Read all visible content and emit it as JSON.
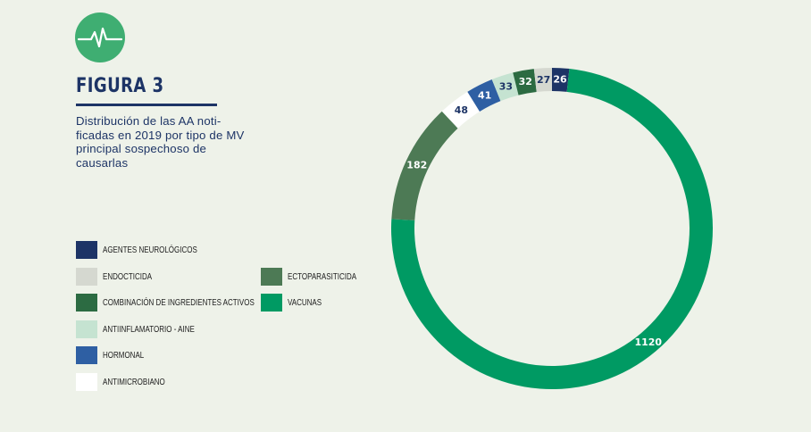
{
  "figure": {
    "title": "FIGURA 3",
    "description": "Distribución de las AA noti-ficadas en 2019 por tipo de MV principal sospechoso de causarlas",
    "logo_icon": "heartbeat-icon"
  },
  "chart_data": {
    "type": "pie",
    "variant": "donut",
    "title": "",
    "slices": [
      {
        "label": "Agentes neurológicos",
        "value": 26,
        "color": "#1d3466",
        "label_color": "#ffffff"
      },
      {
        "label": "Vacunas",
        "value": 1120,
        "color": "#009a63",
        "label_color": "#ffffff"
      },
      {
        "label": "Ectoparasiticida",
        "value": 182,
        "color": "#4d7a55",
        "label_color": "#ffffff"
      },
      {
        "label": "Antimicrobiano",
        "value": 48,
        "color": "#ffffff",
        "label_color": "#1d3466"
      },
      {
        "label": "Hormonal",
        "value": 41,
        "color": "#2e5fa3",
        "label_color": "#ffffff"
      },
      {
        "label": "Antiinflamatorio - AINE",
        "value": 33,
        "color": "#c5e3d1",
        "label_color": "#1d3466"
      },
      {
        "label": "Combinación de ingredientes activos",
        "value": 32,
        "color": "#2c6b42",
        "label_color": "#ffffff"
      },
      {
        "label": "Endocticida",
        "value": 27,
        "color": "#d5d8d0",
        "label_color": "#1d3466"
      }
    ],
    "legend": {
      "placement": "bottom-left",
      "entries": [
        {
          "label": "Agentes neurológicos",
          "color": "#1d3466"
        },
        {
          "label": "Endocticida",
          "color": "#d5d8d0"
        },
        {
          "label": "Combinación de ingredientes activos",
          "color": "#2c6b42"
        },
        {
          "label": "Antiinflamatorio - AINE",
          "color": "#c5e3d1"
        },
        {
          "label": "Hormonal",
          "color": "#2e5fa3"
        },
        {
          "label": "Antimicrobiano",
          "color": "#ffffff"
        },
        {
          "label": "Ectoparasiticida",
          "color": "#4d7a55"
        },
        {
          "label": "Vacunas",
          "color": "#009a63"
        }
      ]
    }
  }
}
